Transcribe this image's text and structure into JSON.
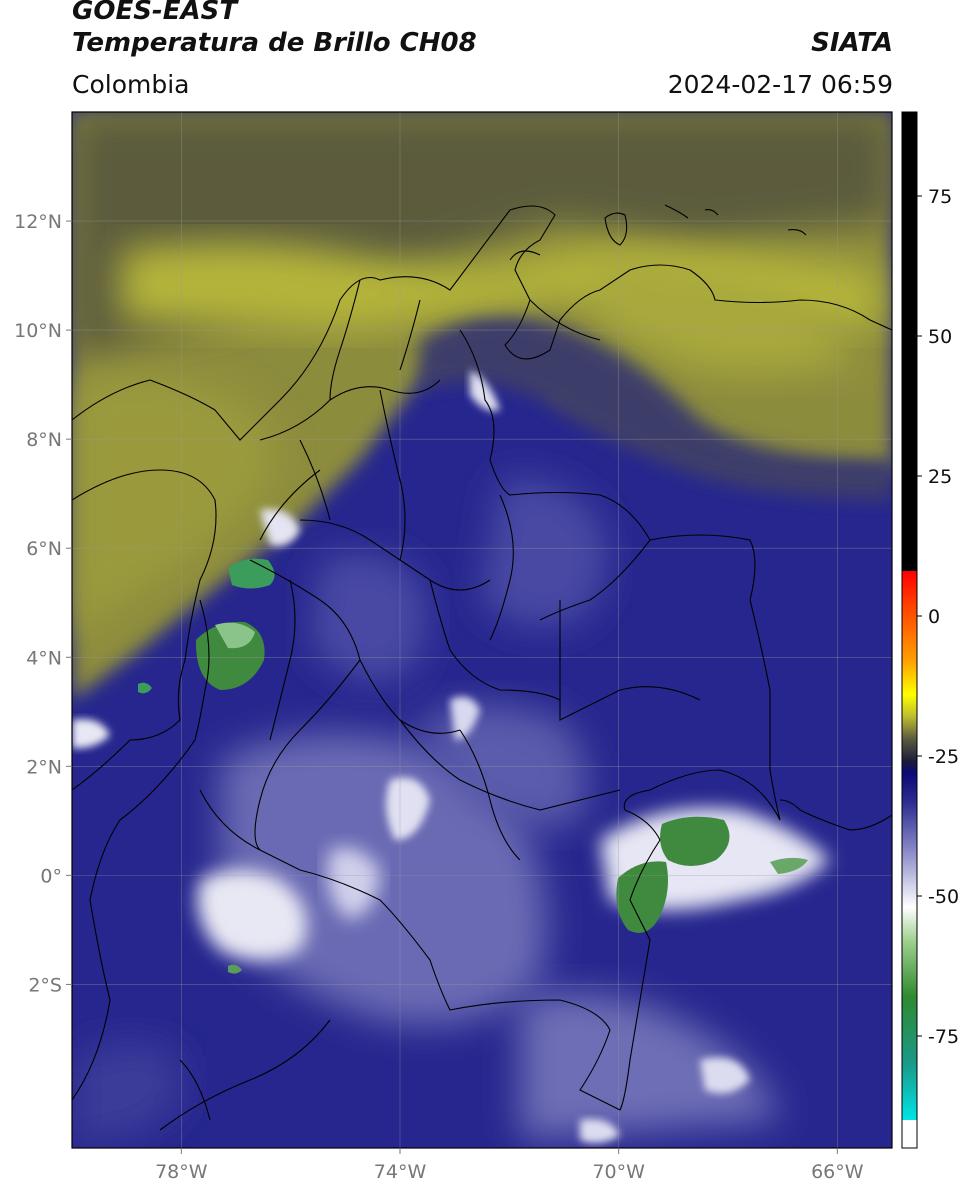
{
  "header": {
    "satellite": "GOES-EAST",
    "product": "Temperatura de Brillo CH08",
    "brand": "SIATA",
    "region": "Colombia",
    "datetime": "2024-02-17 06:59"
  },
  "map": {
    "lon_range": [
      -80,
      -65
    ],
    "lat_range": [
      -5,
      14
    ],
    "lat_ticks": [
      {
        "value": 12,
        "label": "12°N"
      },
      {
        "value": 10,
        "label": "10°N"
      },
      {
        "value": 8,
        "label": "8°N"
      },
      {
        "value": 6,
        "label": "6°N"
      },
      {
        "value": 4,
        "label": "4°N"
      },
      {
        "value": 2,
        "label": "2°N"
      },
      {
        "value": 0,
        "label": "0°"
      },
      {
        "value": -2,
        "label": "2°S"
      }
    ],
    "lon_ticks": [
      {
        "value": -78,
        "label": "78°W"
      },
      {
        "value": -74,
        "label": "74°W"
      },
      {
        "value": -70,
        "label": "70°W"
      },
      {
        "value": -66,
        "label": "66°W"
      }
    ],
    "grid": true
  },
  "colorbar": {
    "range": [
      -95,
      90
    ],
    "ticks": [
      {
        "value": 75,
        "label": "75"
      },
      {
        "value": 50,
        "label": "50"
      },
      {
        "value": 25,
        "label": "25"
      },
      {
        "value": 0,
        "label": "0"
      },
      {
        "value": -25,
        "label": "-25"
      },
      {
        "value": -50,
        "label": "-50"
      },
      {
        "value": -75,
        "label": "-75"
      }
    ],
    "stops": [
      {
        "value": -95,
        "color": "#ffffff"
      },
      {
        "value": -90,
        "color": "#ffffff"
      },
      {
        "value": -90,
        "color": "#00e5e5"
      },
      {
        "value": -80,
        "color": "#1a9a8a"
      },
      {
        "value": -68,
        "color": "#2f8a2f"
      },
      {
        "value": -58,
        "color": "#9fd08f"
      },
      {
        "value": -52,
        "color": "#ffffff"
      },
      {
        "value": -42,
        "color": "#8a8ac8"
      },
      {
        "value": -33,
        "color": "#2a2a90"
      },
      {
        "value": -28,
        "color": "#0a0a78"
      },
      {
        "value": -26,
        "color": "#1a1a3a"
      },
      {
        "value": -22,
        "color": "#5a5a40"
      },
      {
        "value": -18,
        "color": "#bcbc30"
      },
      {
        "value": -14,
        "color": "#ffff00"
      },
      {
        "value": -8,
        "color": "#ffa000"
      },
      {
        "value": 2,
        "color": "#ff4000"
      },
      {
        "value": 8,
        "color": "#ff0000"
      },
      {
        "value": 8,
        "color": "#000000"
      },
      {
        "value": 90,
        "color": "#000000"
      }
    ]
  },
  "colors": {
    "cold_cloud": "#1c1c8c",
    "mid_cloud": "#7878be",
    "high_cloud_white": "#f2f2f8",
    "very_cold_green": "#3c8c3c",
    "dry_air_olive": "#a0a03a",
    "dark_olive": "#5f5f3a"
  }
}
